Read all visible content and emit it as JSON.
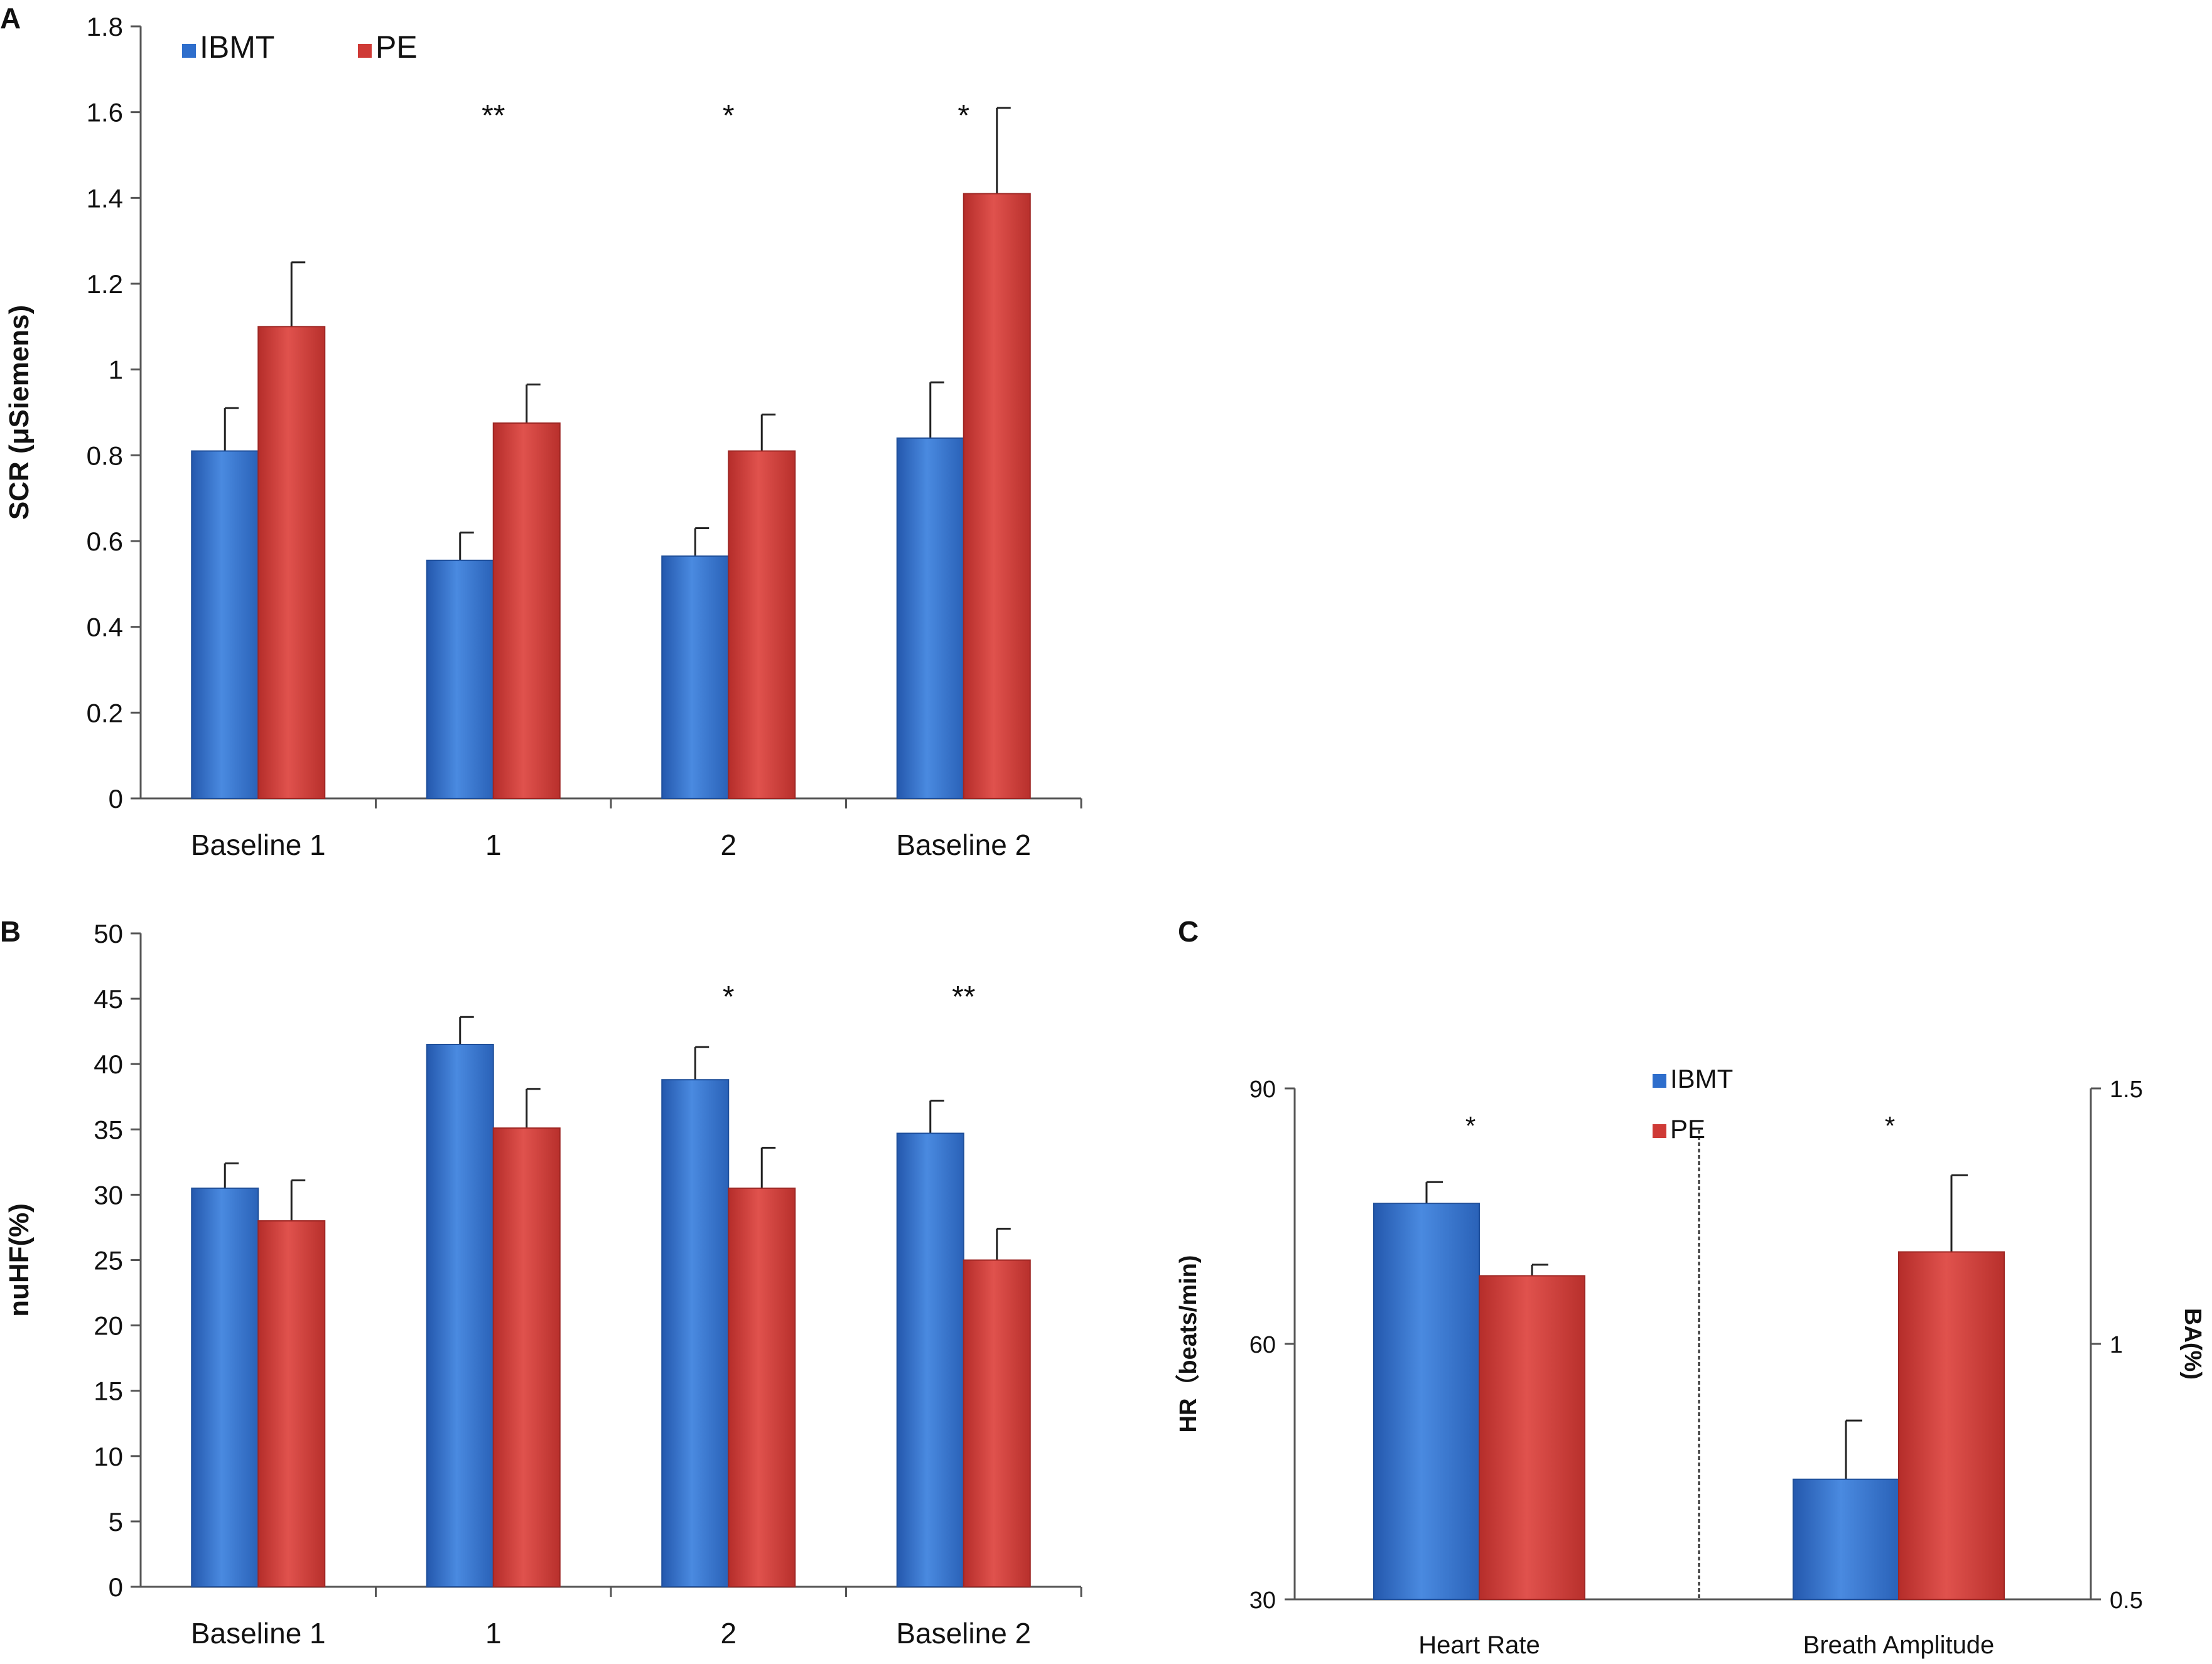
{
  "colors": {
    "ibmt": "#2e6ecc",
    "pe": "#cf3a36",
    "axis": "#555555",
    "text": "#111111"
  },
  "chart_data": [
    {
      "panel": "A",
      "type": "bar",
      "categories": [
        "Baseline 1",
        "1",
        "2",
        "Baseline 2"
      ],
      "ylabel": "SCR (μSiemens)",
      "ylim": [
        0,
        1.8
      ],
      "yticks": [
        "0",
        "0.2",
        "0.4",
        "0.6",
        "0.8",
        "1",
        "1.2",
        "1.4",
        "1.6",
        "1.8"
      ],
      "legend": [
        "IBMT",
        "PE"
      ],
      "legend_position": "top-left",
      "series": [
        {
          "name": "IBMT",
          "values": [
            0.81,
            0.555,
            0.565,
            0.84
          ],
          "errors": [
            0.1,
            0.065,
            0.065,
            0.13
          ]
        },
        {
          "name": "PE",
          "values": [
            1.1,
            0.875,
            0.81,
            1.41
          ],
          "errors": [
            0.15,
            0.09,
            0.085,
            0.2
          ]
        }
      ],
      "significance": [
        "",
        "**",
        "*",
        "*"
      ]
    },
    {
      "panel": "B",
      "type": "bar",
      "categories": [
        "Baseline 1",
        "1",
        "2",
        "Baseline 2"
      ],
      "ylabel": "nuHF(%)",
      "ylim": [
        0,
        50
      ],
      "yticks": [
        "0",
        "5",
        "10",
        "15",
        "20",
        "25",
        "30",
        "35",
        "40",
        "45",
        "50"
      ],
      "series": [
        {
          "name": "IBMT",
          "values": [
            30.5,
            41.5,
            38.8,
            34.7
          ],
          "errors": [
            1.9,
            2.1,
            2.5,
            2.5
          ]
        },
        {
          "name": "PE",
          "values": [
            28.0,
            35.1,
            30.5,
            25.0
          ],
          "errors": [
            3.1,
            3.0,
            3.1,
            2.4
          ]
        }
      ],
      "significance": [
        "",
        "",
        "*",
        "**"
      ]
    },
    {
      "panel": "C",
      "type": "bar",
      "categories": [
        "Heart Rate",
        "Breath Amplitude"
      ],
      "ylabel_left": "HR（beats/min)",
      "ylabel_right": "BA(%)",
      "ylim_left": [
        30,
        90
      ],
      "ylim_right": [
        0.5,
        1.5
      ],
      "yticks_left": [
        "30",
        "60",
        "90"
      ],
      "yticks_right": [
        "0.5",
        "1",
        "1.5"
      ],
      "legend": [
        "IBMT",
        "PE"
      ],
      "legend_position": "top-center",
      "series": [
        {
          "name": "IBMT",
          "values": [
            76.5,
            0.735
          ],
          "errors": [
            2.5,
            0.115
          ]
        },
        {
          "name": "PE",
          "values": [
            68,
            1.18
          ],
          "errors": [
            1.3,
            0.15
          ]
        }
      ],
      "significance": [
        "*",
        "*"
      ]
    }
  ]
}
